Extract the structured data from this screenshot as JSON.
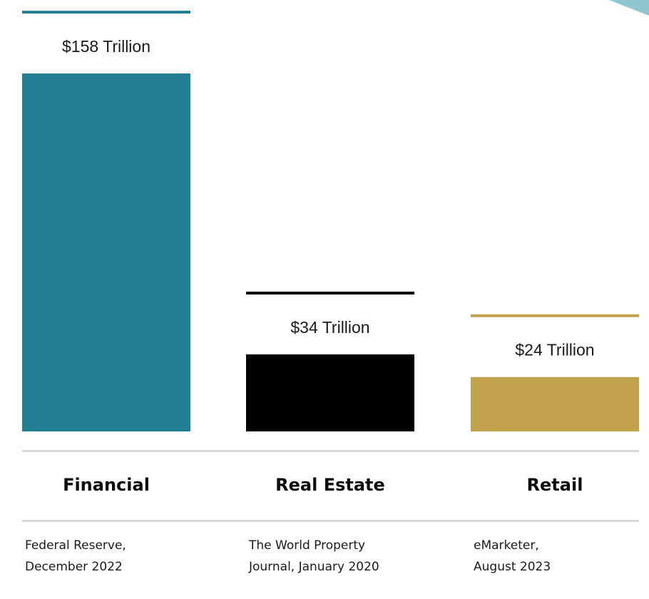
{
  "colors": {
    "financial": "#237f94",
    "real_estate": "#000000",
    "retail": "#c2a34d",
    "corner_accent": "#8fc6d0"
  },
  "chart_data": {
    "type": "bar",
    "categories": [
      "Financial",
      "Real Estate",
      "Retail"
    ],
    "values": [
      158,
      34,
      24
    ],
    "unit": "Trillion (USD)",
    "data_labels": [
      "$158 Trillion",
      "$34 Trillion",
      "$24 Trillion"
    ],
    "colors": [
      "#237f94",
      "#000000",
      "#c2a34d"
    ],
    "sources": [
      [
        "Federal Reserve,",
        "December 2022"
      ],
      [
        "The World Property",
        "Journal, January 2020"
      ],
      [
        "eMarketer,",
        "August 2023"
      ]
    ],
    "grid": false,
    "legend": "none"
  },
  "categories": {
    "financial": "Financial",
    "real_estate": "Real Estate",
    "retail": "Retail"
  },
  "sources": {
    "financial": {
      "line1": "Federal Reserve,",
      "line2": "December 2022"
    },
    "real_estate": {
      "line1": "The World Property",
      "line2": "Journal, January 2020"
    },
    "retail": {
      "line1": "eMarketer,",
      "line2": "August 2023"
    }
  }
}
